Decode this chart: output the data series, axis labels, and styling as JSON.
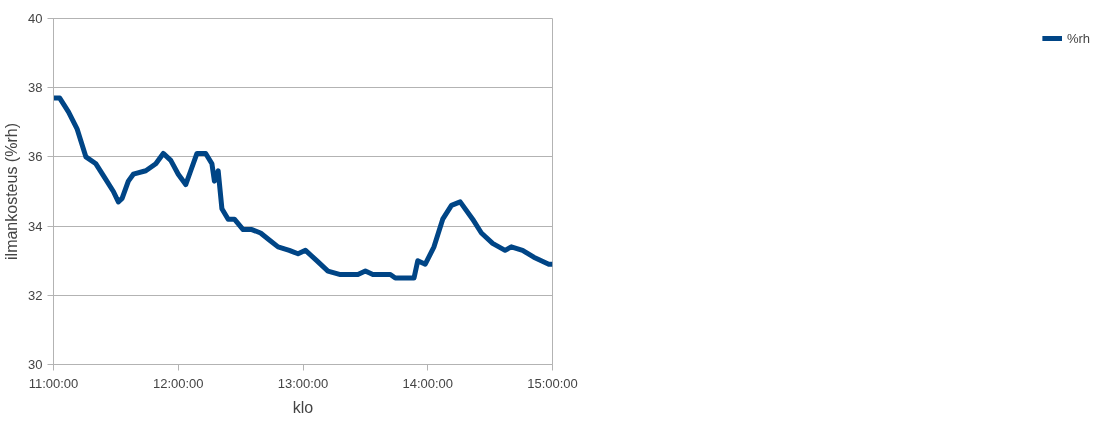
{
  "chart_data": {
    "type": "line",
    "xlabel": "klo",
    "ylabel": "ilmankosteus (%rh)",
    "x": [
      11.0,
      11.05,
      11.12,
      11.19,
      11.26,
      11.34,
      11.41,
      11.48,
      11.52,
      11.55,
      11.6,
      11.64,
      11.74,
      11.82,
      11.88,
      11.94,
      12.0,
      12.06,
      12.1,
      12.15,
      12.22,
      12.27,
      12.29,
      12.32,
      12.35,
      12.4,
      12.45,
      12.52,
      12.59,
      12.66,
      12.73,
      12.8,
      12.89,
      12.96,
      13.02,
      13.11,
      13.2,
      13.3,
      13.44,
      13.5,
      13.56,
      13.7,
      13.74,
      13.89,
      13.92,
      13.98,
      14.05,
      14.12,
      14.19,
      14.26,
      14.36,
      14.43,
      14.52,
      14.62,
      14.67,
      14.76,
      14.85,
      14.97,
      15.0
    ],
    "series": [
      {
        "name": "%rh",
        "color": "#004586",
        "values": [
          37.7,
          37.7,
          37.3,
          36.8,
          36.0,
          35.8,
          35.4,
          35.0,
          34.7,
          34.8,
          35.3,
          35.5,
          35.6,
          35.8,
          36.1,
          35.9,
          35.5,
          35.2,
          35.6,
          36.1,
          36.1,
          35.8,
          35.3,
          35.6,
          34.5,
          34.2,
          34.2,
          33.9,
          33.9,
          33.8,
          33.6,
          33.4,
          33.3,
          33.2,
          33.3,
          33.0,
          32.7,
          32.6,
          32.6,
          32.7,
          32.6,
          32.6,
          32.5,
          32.5,
          33.0,
          32.9,
          33.4,
          34.2,
          34.6,
          34.7,
          34.2,
          33.8,
          33.5,
          33.3,
          33.4,
          33.3,
          33.1,
          32.9,
          32.9
        ]
      }
    ],
    "xlim": [
      11,
      15
    ],
    "xticks": [
      {
        "value": 11,
        "label": "11:00:00"
      },
      {
        "value": 12,
        "label": "12:00:00"
      },
      {
        "value": 13,
        "label": "13:00:00"
      },
      {
        "value": 14,
        "label": "14:00:00"
      },
      {
        "value": 15,
        "label": "15:00:00"
      }
    ],
    "ylim": [
      30,
      40
    ],
    "yticks": [
      30,
      32,
      34,
      36,
      38,
      40
    ],
    "grid": "y",
    "legend": "right",
    "marker": "none",
    "line_style": "solid"
  }
}
